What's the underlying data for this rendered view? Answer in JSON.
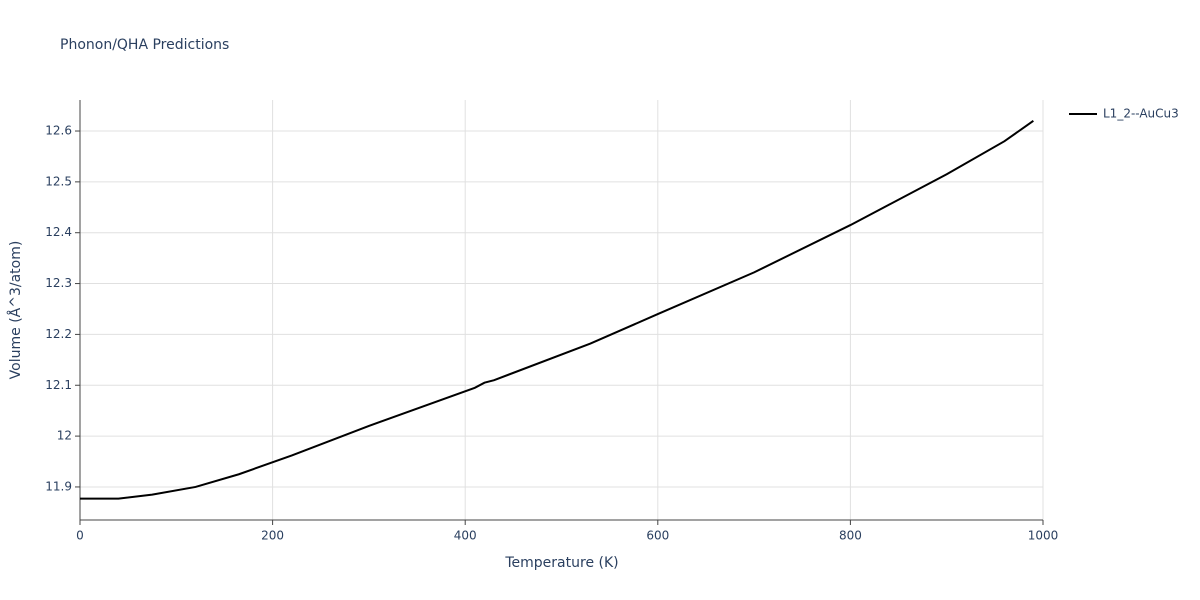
{
  "chart_data": {
    "type": "line",
    "title": "Phonon/QHA Predictions",
    "x_label": "Temperature (K)",
    "y_label": "Volume (Å^3/atom)",
    "x": [
      0,
      40,
      75,
      120,
      165,
      220,
      300,
      410,
      420,
      430,
      530,
      600,
      700,
      800,
      840,
      900,
      960,
      990
    ],
    "series": [
      {
        "name": "L1_2--AuCu3",
        "color": "#000000",
        "values": [
          11.877,
          11.877,
          11.885,
          11.9,
          11.925,
          11.962,
          12.02,
          12.095,
          12.105,
          12.11,
          12.182,
          12.24,
          12.322,
          12.415,
          12.455,
          12.515,
          12.58,
          12.62
        ]
      }
    ],
    "xlim": [
      0,
      1000
    ],
    "xticks": [
      0,
      200,
      400,
      600,
      800,
      1000
    ],
    "ylim": [
      11.835,
      12.661
    ],
    "yticks": [
      11.9,
      12,
      12.1,
      12.2,
      12.3,
      12.4,
      12.5,
      12.6
    ],
    "grid": true,
    "legend": "right"
  }
}
